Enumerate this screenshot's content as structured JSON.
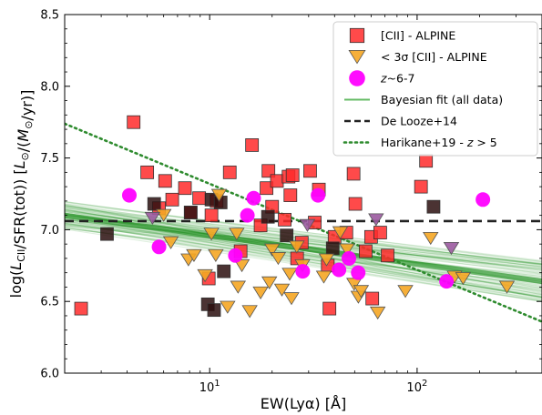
{
  "chart_data": {
    "type": "scatter",
    "xlabel": "EW(Lyα) [Å]",
    "ylabel": "log(L_CII/SFR(tot)) [L⊙/(M⊙/yr)]",
    "xscale": "log",
    "xlim": [
      2.0,
      400
    ],
    "ylim": [
      6.0,
      8.5
    ],
    "x_ticks": [
      10,
      100
    ],
    "x_tick_labels": [
      "10^1",
      "10^2"
    ],
    "y_ticks": [
      6.0,
      6.5,
      7.0,
      7.5,
      8.0,
      8.5
    ],
    "y_tick_labels": [
      "6.0",
      "6.5",
      "7.0",
      "7.5",
      "8.0",
      "8.5"
    ],
    "legend_position": "top-right",
    "legend": [
      {
        "label": "[CII] - ALPINE",
        "marker": "square",
        "color": "#ff2a2a"
      },
      {
        "label": "< 3σ [CII] - ALPINE",
        "marker": "triangle-down",
        "color": "#f5a623"
      },
      {
        "label": "z~6-7",
        "marker": "circle",
        "color": "#ff00ff"
      },
      {
        "label": "Bayesian fit (all data)",
        "marker": "line",
        "color": "#66bb66"
      },
      {
        "label": "De Looze+14",
        "marker": "dashed-line",
        "color": "#222222"
      },
      {
        "label": "Harikane+19 - z > 5",
        "marker": "dotted-line",
        "color": "#2e8b2e"
      }
    ],
    "series": [
      {
        "name": "[CII] - ALPINE",
        "marker": "square",
        "color": "#ff2a2a",
        "points": [
          [
            2.4,
            6.45
          ],
          [
            4.3,
            7.75
          ],
          [
            5.0,
            7.4
          ],
          [
            5.7,
            7.15
          ],
          [
            6.1,
            7.34
          ],
          [
            6.6,
            7.21
          ],
          [
            7.6,
            7.29
          ],
          [
            8.1,
            7.12
          ],
          [
            8.9,
            7.22
          ],
          [
            9.9,
            6.66
          ],
          [
            10.2,
            7.1
          ],
          [
            10.8,
            7.2
          ],
          [
            12.5,
            7.4
          ],
          [
            14.1,
            6.85
          ],
          [
            16.0,
            7.59
          ],
          [
            17.6,
            7.03
          ],
          [
            18.8,
            7.29
          ],
          [
            19.2,
            7.41
          ],
          [
            20.0,
            7.16
          ],
          [
            21.1,
            7.34
          ],
          [
            23.0,
            7.07
          ],
          [
            24.0,
            7.37
          ],
          [
            24.5,
            7.24
          ],
          [
            25.1,
            7.38
          ],
          [
            26.4,
            6.8
          ],
          [
            27.8,
            6.91
          ],
          [
            30.5,
            7.41
          ],
          [
            32.1,
            7.05
          ],
          [
            33.6,
            7.28
          ],
          [
            37.1,
            6.75
          ],
          [
            37.8,
            6.45
          ],
          [
            40.0,
            6.95
          ],
          [
            45.6,
            6.98
          ],
          [
            49.4,
            7.39
          ],
          [
            50.4,
            7.18
          ],
          [
            56.5,
            6.85
          ],
          [
            60.0,
            6.95
          ],
          [
            60.8,
            6.52
          ],
          [
            66.4,
            6.98
          ],
          [
            72.1,
            6.82
          ],
          [
            104.4,
            7.3
          ],
          [
            110.4,
            7.48
          ]
        ]
      },
      {
        "name": "[CII] - ALPINE (dark)",
        "marker": "square",
        "color": "#2b0f0f",
        "points": [
          [
            3.2,
            6.97
          ],
          [
            5.4,
            7.18
          ],
          [
            8.1,
            7.12
          ],
          [
            9.8,
            6.48
          ],
          [
            10.2,
            7.21
          ],
          [
            10.5,
            6.44
          ],
          [
            11.3,
            7.19
          ],
          [
            11.7,
            6.71
          ],
          [
            19.1,
            7.09
          ],
          [
            23.5,
            6.96
          ],
          [
            39.2,
            6.87
          ],
          [
            120.0,
            7.16
          ]
        ]
      },
      {
        "name": "< 3σ [CII] - ALPINE",
        "marker": "triangle-down",
        "color": "#f5a623",
        "points": [
          [
            6.0,
            7.1
          ],
          [
            6.5,
            6.91
          ],
          [
            7.9,
            6.79
          ],
          [
            8.4,
            6.82
          ],
          [
            9.5,
            6.68
          ],
          [
            10.2,
            6.97
          ],
          [
            10.7,
            6.82
          ],
          [
            11.1,
            7.24
          ],
          [
            12.2,
            6.46
          ],
          [
            13.5,
            6.97
          ],
          [
            13.7,
            6.6
          ],
          [
            14.3,
            6.75
          ],
          [
            15.6,
            6.43
          ],
          [
            17.6,
            6.56
          ],
          [
            19.4,
            6.63
          ],
          [
            20.0,
            6.86
          ],
          [
            21.4,
            6.8
          ],
          [
            22.3,
            6.58
          ],
          [
            24.3,
            6.69
          ],
          [
            24.8,
            6.52
          ],
          [
            26.3,
            6.88
          ],
          [
            28.0,
            6.75
          ],
          [
            35.5,
            6.67
          ],
          [
            36.6,
            6.79
          ],
          [
            42.6,
            6.98
          ],
          [
            45.9,
            6.86
          ],
          [
            49.7,
            6.62
          ],
          [
            52.1,
            6.53
          ],
          [
            53.7,
            6.57
          ],
          [
            64.6,
            6.42
          ],
          [
            87.8,
            6.57
          ],
          [
            116.2,
            6.94
          ],
          [
            151.6,
            6.67
          ],
          [
            166.6,
            6.66
          ],
          [
            271.0,
            6.6
          ]
        ]
      },
      {
        "name": "< 3σ [CII] - ALPINE (muted)",
        "marker": "triangle-down",
        "color": "#9b5aa0",
        "points": [
          [
            5.3,
            7.08
          ],
          [
            29.6,
            7.03
          ],
          [
            63.4,
            7.07
          ],
          [
            146.2,
            6.87
          ]
        ]
      },
      {
        "name": "z~6-7",
        "marker": "circle",
        "color": "#ff00ff",
        "points": [
          [
            4.1,
            7.24
          ],
          [
            5.7,
            6.88
          ],
          [
            13.3,
            6.82
          ],
          [
            15.2,
            7.1
          ],
          [
            16.3,
            7.22
          ],
          [
            28.1,
            6.71
          ],
          [
            33.3,
            7.24
          ],
          [
            42.0,
            6.72
          ],
          [
            46.9,
            6.8
          ],
          [
            52.0,
            6.7
          ],
          [
            138.6,
            6.64
          ],
          [
            207.6,
            7.21
          ]
        ]
      }
    ],
    "fits": {
      "bayesian": {
        "name": "Bayesian fit (all data)",
        "color": "#008000",
        "intercept": 7.16,
        "slope": -0.2,
        "band": 0.09
      },
      "delooze": {
        "name": "De Looze+14",
        "color": "#222222",
        "y": 7.06
      },
      "harikane": {
        "name": "Harikane+19 - z > 5",
        "color": "#2e8b2e",
        "intercept": 7.92,
        "slope": -0.6
      }
    }
  }
}
